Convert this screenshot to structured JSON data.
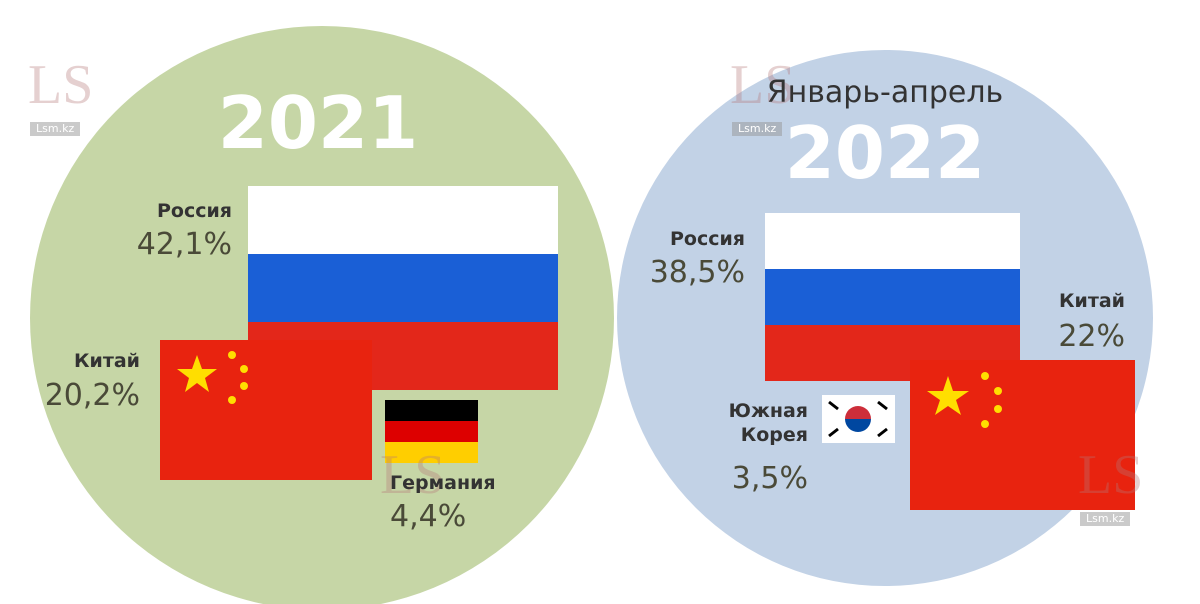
{
  "watermark": {
    "logo": "LS",
    "site": "Lsm.kz"
  },
  "panels": [
    {
      "year": "2021",
      "entries": [
        {
          "country": "Россия",
          "share": "42,1%"
        },
        {
          "country": "Китай",
          "share": "20,2%"
        },
        {
          "country": "Германия",
          "share": "4,4%"
        }
      ]
    },
    {
      "period": "Январь-апрель",
      "year": "2022",
      "entries": [
        {
          "country": "Россия",
          "share": "38,5%"
        },
        {
          "country": "Китай",
          "share": "22%"
        },
        {
          "country": "Южная\nКорея",
          "share": "3,5%"
        }
      ]
    }
  ]
}
